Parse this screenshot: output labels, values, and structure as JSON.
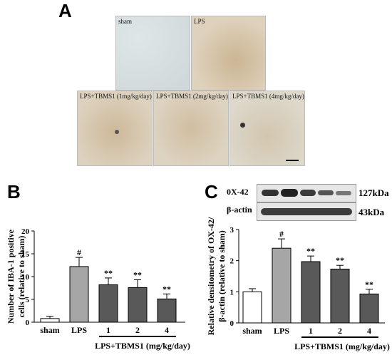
{
  "panel_a": {
    "letter": "A",
    "images": [
      {
        "label": "sham",
        "tone": "#d7dee0"
      },
      {
        "label": "LPS",
        "tone": "#d9c9b0"
      },
      {
        "label": "LPS+TBMS1 (1mg/kg/day)",
        "tone": "#d8ccb6"
      },
      {
        "label": "LPS+TBMS1 (2mg/kg/day)",
        "tone": "#d7cdb8"
      },
      {
        "label": "LPS+TBMS1 (4mg/kg/day)",
        "tone": "#d6d2c6"
      }
    ]
  },
  "panel_b": {
    "letter": "B",
    "ylabel_line1": "Number of IBA-1 positive",
    "ylabel_line2": "cells (relative to sham)",
    "group_label": "LPS+TBMS1 (mg/kg/day)"
  },
  "panel_c": {
    "letter": "C",
    "blot_rows": [
      {
        "protein": "0X-42",
        "size": "127kDa"
      },
      {
        "protein": "β-actin",
        "size": "43kDa"
      }
    ],
    "ylabel_line1": "Relative densitometry of OX-42/",
    "ylabel_line2": "β-actin (relative to sham)",
    "group_label": "LPS+TBMS1 (mg/kg/day)"
  },
  "chart_data": [
    {
      "type": "bar",
      "categories": [
        "sham",
        "LPS",
        "1",
        "2",
        "4"
      ],
      "values": [
        0.8,
        12.2,
        8.2,
        7.6,
        5.1
      ],
      "errors": [
        0.5,
        2.0,
        1.5,
        1.7,
        1.1
      ],
      "significance": [
        "",
        "#",
        "**",
        "**",
        "**"
      ],
      "colors": [
        "#ffffff",
        "#a6a6a6",
        "#595959",
        "#595959",
        "#595959"
      ],
      "ylim": [
        0,
        20
      ],
      "yticks": [
        0,
        5,
        10,
        15,
        20
      ],
      "ylabel": "Number of IBA-1 positive cells (relative to sham)",
      "xlabel": "LPS+TBMS1 (mg/kg/day)",
      "grid": false
    },
    {
      "type": "bar",
      "categories": [
        "sham",
        "LPS",
        "1",
        "2",
        "4"
      ],
      "values": [
        1.0,
        2.4,
        1.97,
        1.73,
        0.93
      ],
      "errors": [
        0.1,
        0.3,
        0.18,
        0.12,
        0.15
      ],
      "significance": [
        "",
        "#",
        "**",
        "**",
        "**"
      ],
      "colors": [
        "#ffffff",
        "#a6a6a6",
        "#595959",
        "#595959",
        "#595959"
      ],
      "ylim": [
        0,
        3
      ],
      "yticks": [
        0,
        1,
        2,
        3
      ],
      "ylabel": "Relative densitometry of OX-42/ β-actin (relative to sham)",
      "xlabel": "LPS+TBMS1 (mg/kg/day)",
      "grid": false
    }
  ]
}
